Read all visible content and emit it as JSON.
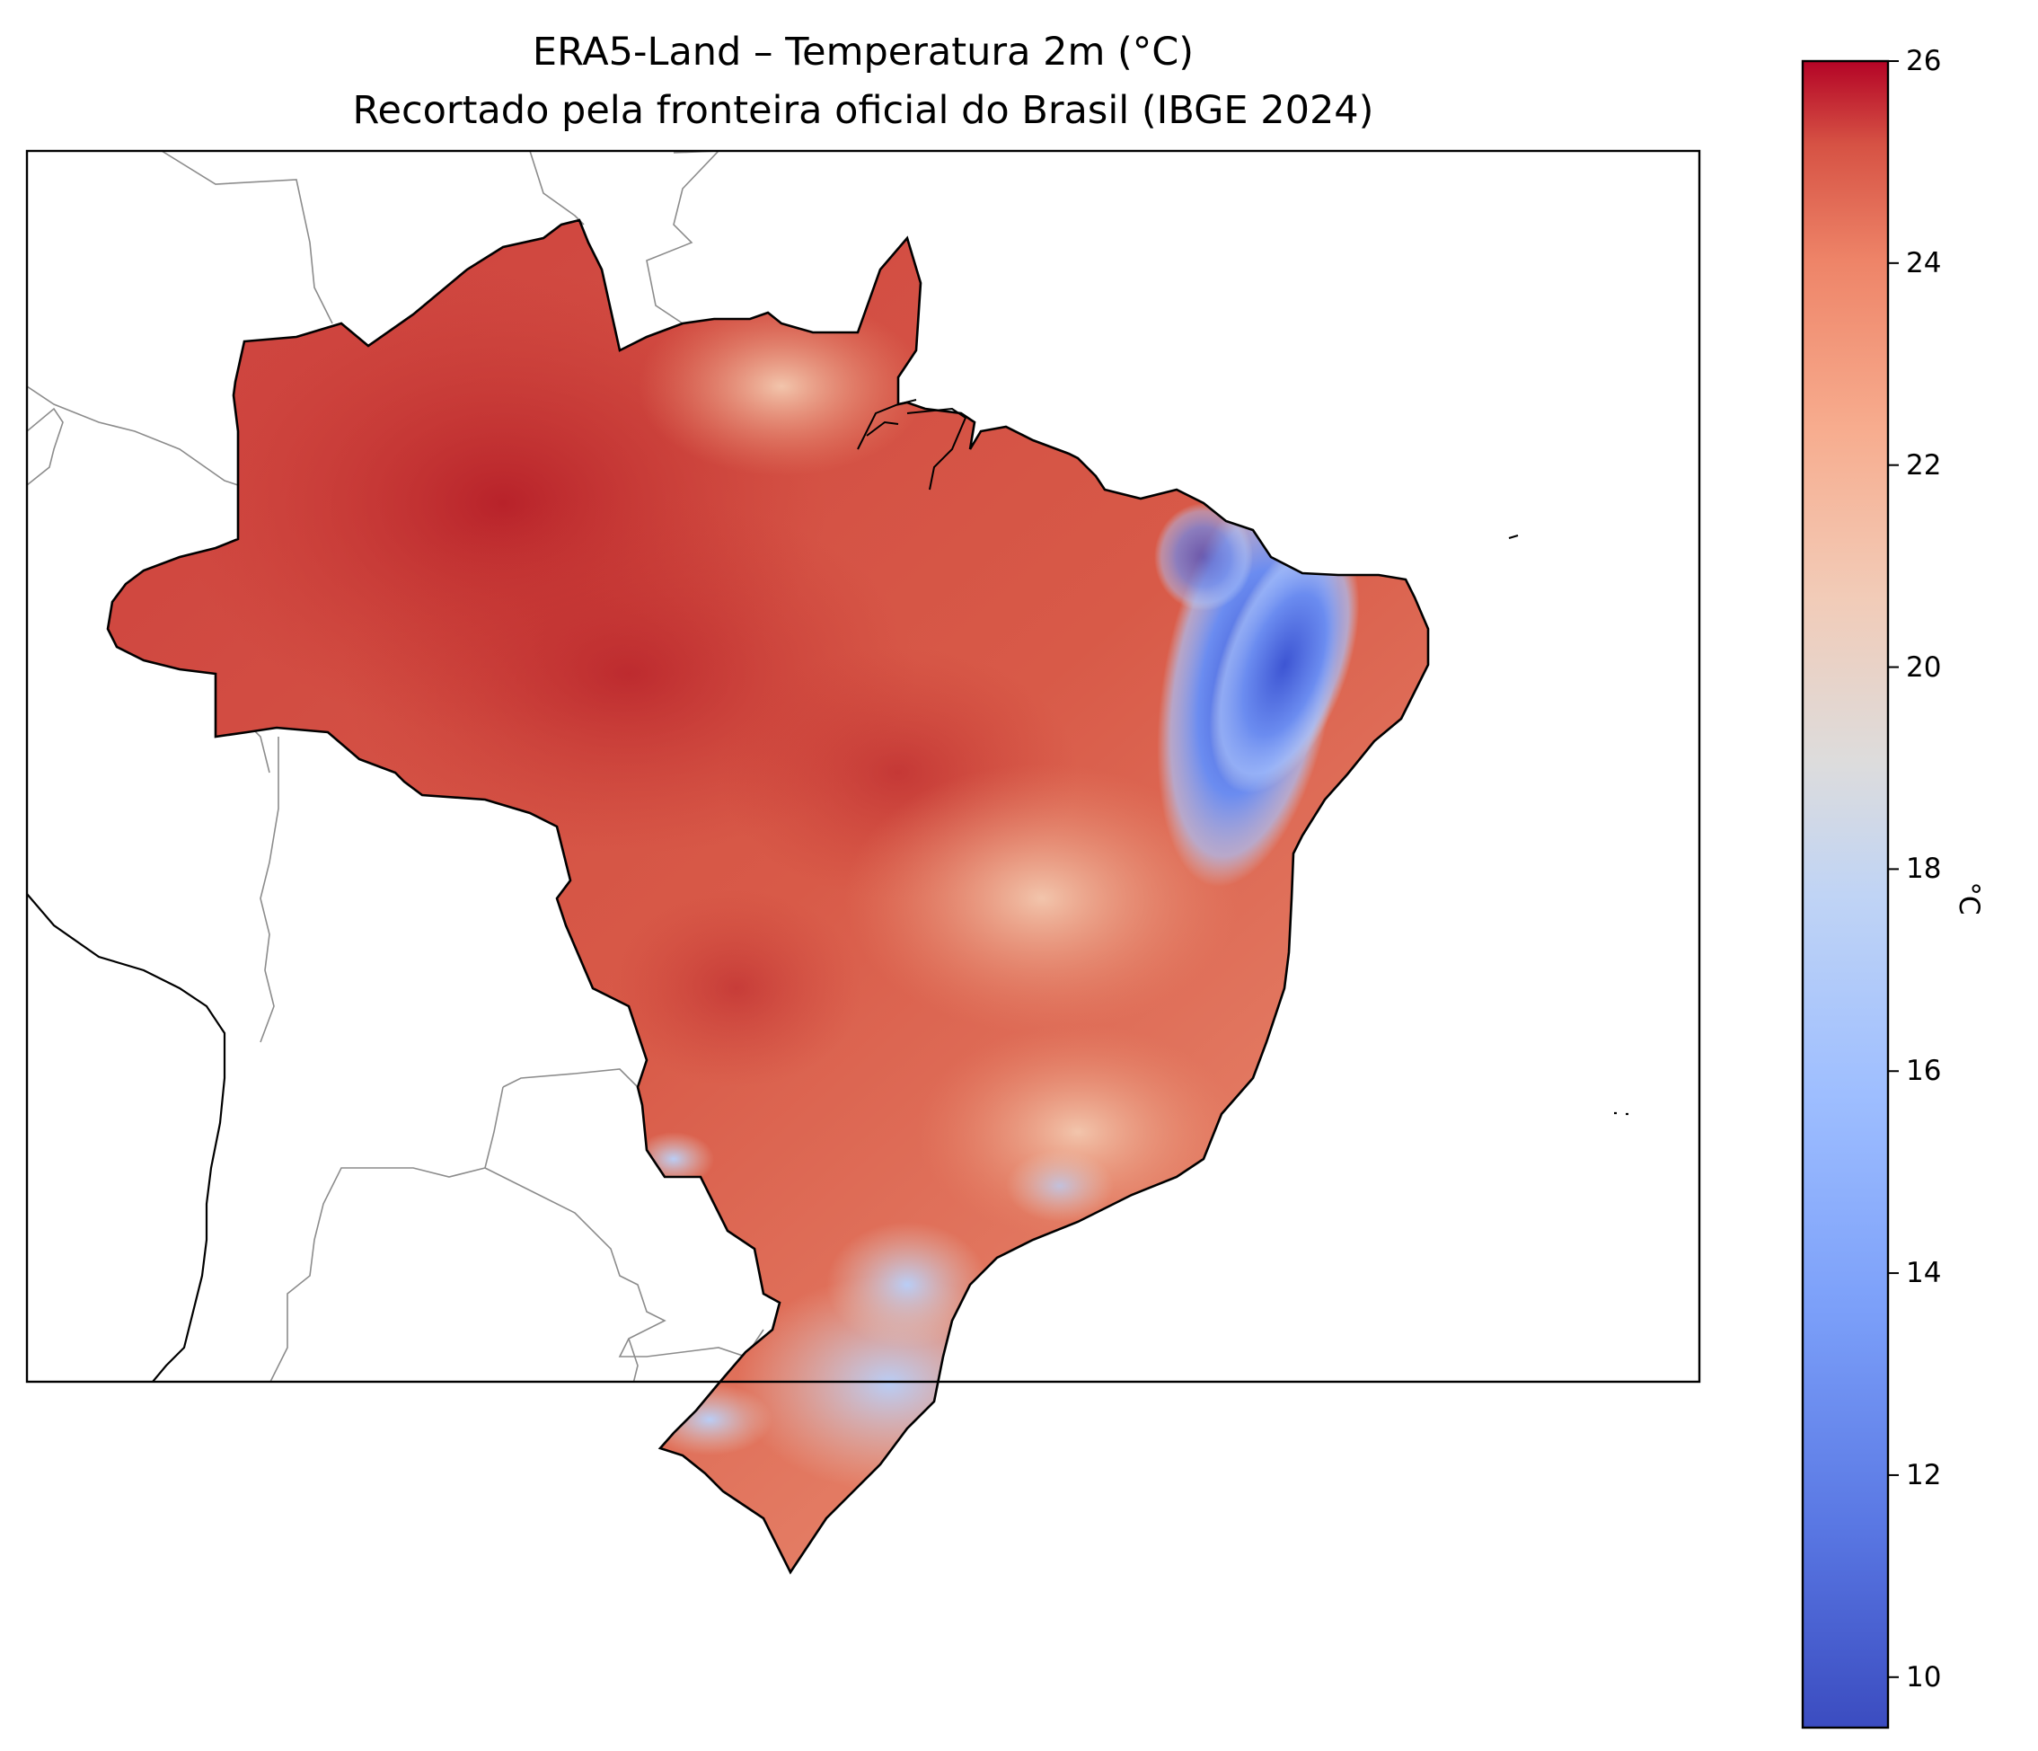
{
  "title_line_1": "ERA5-Land – Temperatura 2m (°C)",
  "title_line_2": "Recortado pela fronteira oficial do Brasil (IBGE 2024)",
  "colorbar": {
    "label": "°C",
    "min": 9.5,
    "max": 26,
    "ticks": [
      "10",
      "12",
      "14",
      "16",
      "18",
      "20",
      "22",
      "24",
      "26"
    ],
    "colormap": "coolwarm",
    "colors": {
      "low": "#3b4cc0",
      "mid": "#dddcdc",
      "high": "#b40426"
    }
  },
  "map": {
    "variable": "Temperatura 2m",
    "unit": "°C",
    "hot_region_color": "#c0282d",
    "cool_region_color": "#3d58d6",
    "border_color": "#000000",
    "neighbor_border_color": "#8c8c8c"
  }
}
